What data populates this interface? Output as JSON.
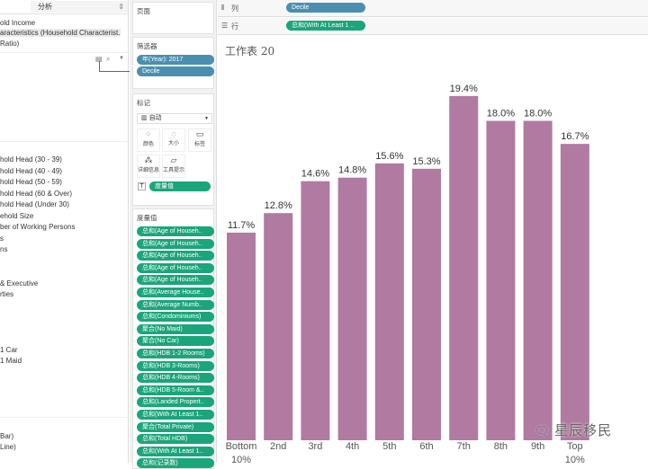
{
  "left_panel": {
    "tab_label": "分析",
    "top_items": [
      "old Income",
      "aracteristics  (Household Characterist...",
      "Ratio)"
    ],
    "fields": [
      {
        "label": "hold Head (30 - 39)"
      },
      {
        "label": "hold Head (40 - 49)"
      },
      {
        "label": "hold Head (50 - 59)"
      },
      {
        "label": "hold Head (60 & Over)"
      },
      {
        "label": "hold Head (Under 30)"
      },
      {
        "label": "ehold Size"
      },
      {
        "label": "ber of Working Persons"
      },
      {
        "label": "s"
      },
      {
        "label": "ns"
      },
      {
        "label": "& Executive"
      },
      {
        "label": "rties"
      },
      {
        "label": "1 Car"
      },
      {
        "label": "1 Maid"
      },
      {
        "label": "Bar)"
      },
      {
        "label": "Line)"
      }
    ]
  },
  "shelves": {
    "pages_label": "页面",
    "filters_label": "筛选器",
    "filters": [
      "年(Year): 2017",
      "Decile"
    ],
    "marks_label": "标记",
    "mark_type": "自动",
    "mark_buttons": [
      "颜色",
      "大小",
      "标签",
      "详细信息",
      "工具提示"
    ],
    "mark_label_pill": "度量值",
    "measures_label": "度量值",
    "measures": [
      {
        "label": "总和(Age of Househ..",
        "kind": "sum"
      },
      {
        "label": "总和(Age of Househ..",
        "kind": "sum"
      },
      {
        "label": "总和(Age of Househ..",
        "kind": "sum"
      },
      {
        "label": "总和(Age of Househ..",
        "kind": "sum"
      },
      {
        "label": "总和(Age of Househ..",
        "kind": "sum"
      },
      {
        "label": "总和(Average House..",
        "kind": "sum"
      },
      {
        "label": "总和(Average Numb..",
        "kind": "sum"
      },
      {
        "label": "总和(Condominiums)",
        "kind": "sum"
      },
      {
        "label": "聚合(No Maid)",
        "kind": "agg"
      },
      {
        "label": "聚合(No Car)",
        "kind": "agg"
      },
      {
        "label": "总和(HDB 1-2 Rooms)",
        "kind": "sum"
      },
      {
        "label": "总和(HDB 3-Rooms)",
        "kind": "sum"
      },
      {
        "label": "总和(HDB 4-Rooms)",
        "kind": "sum"
      },
      {
        "label": "总和(HDB 5-Room &..",
        "kind": "sum"
      },
      {
        "label": "总和(Landed Propert..",
        "kind": "sum"
      },
      {
        "label": "总和(With At Least 1..",
        "kind": "sum"
      },
      {
        "label": "聚合(Total Private)",
        "kind": "agg"
      },
      {
        "label": "总和(Total HDB)",
        "kind": "sum"
      },
      {
        "label": "总和(With At Least 1..",
        "kind": "sum"
      },
      {
        "label": "总和(记录数)",
        "kind": "sum"
      }
    ]
  },
  "columns_shelf": {
    "label": "列",
    "pill": "Decile"
  },
  "rows_shelf": {
    "label": "行",
    "pill": "总和(With At Least 1 .."
  },
  "sheet_title": "工作表 20",
  "watermark": "星辰移民",
  "colors": {
    "bar": "#b07aa1",
    "filter_pill": "#4a8fb0",
    "measure_pill": "#1aa57a"
  },
  "chart_data": {
    "type": "bar",
    "title": "工作表 20",
    "categories": [
      "Bottom 10%",
      "2nd",
      "3rd",
      "4th",
      "5th",
      "6th",
      "7th",
      "8th",
      "9th",
      "Top 10%"
    ],
    "values": [
      11.7,
      12.8,
      14.6,
      14.8,
      15.6,
      15.3,
      19.4,
      18.0,
      18.0,
      16.7
    ],
    "labels": [
      "11.7%",
      "12.8%",
      "14.6%",
      "14.8%",
      "15.6%",
      "15.3%",
      "19.4%",
      "18.0%",
      "18.0%",
      "16.7%"
    ],
    "ylim": [
      0,
      20
    ],
    "xlabel": "",
    "ylabel": ""
  }
}
